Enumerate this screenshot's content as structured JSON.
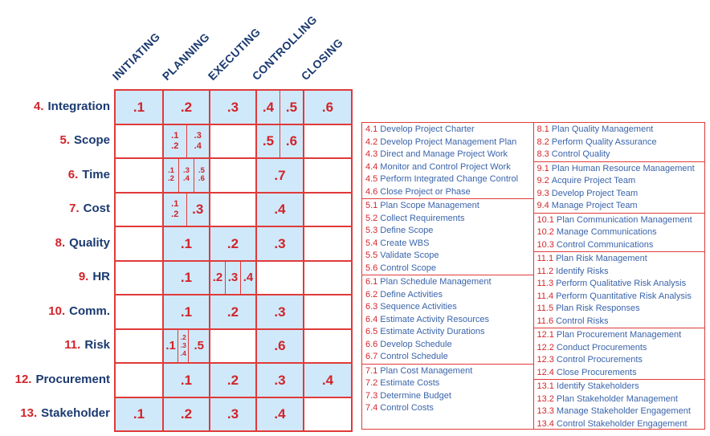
{
  "colors": {
    "cell_fill": "#cfe9fa",
    "line_red": "#e03a3a",
    "number_red": "#d2232a",
    "heading_navy": "#1b3a70",
    "legend_blue": "#3a64ab",
    "legend_number_red": "#d4262c"
  },
  "matrix": {
    "column_headers": [
      "INITIATING",
      "PLANNING",
      "EXECUTING",
      "CONTROLLING",
      "CLOSING"
    ],
    "rows": [
      {
        "num": "4.",
        "label": "Integration",
        "cells": [
          {
            "shaded": true,
            "subs": [
              {
                "size": "lg",
                "lines": [
                  ".1"
                ]
              }
            ]
          },
          {
            "shaded": true,
            "subs": [
              {
                "size": "lg",
                "lines": [
                  ".2"
                ]
              }
            ]
          },
          {
            "shaded": true,
            "subs": [
              {
                "size": "lg",
                "lines": [
                  ".3"
                ]
              }
            ]
          },
          {
            "shaded": true,
            "subs": [
              {
                "size": "lg",
                "lines": [
                  ".4"
                ]
              },
              {
                "size": "lg",
                "lines": [
                  ".5"
                ]
              }
            ]
          },
          {
            "shaded": true,
            "subs": [
              {
                "size": "lg",
                "lines": [
                  ".6"
                ]
              }
            ]
          }
        ]
      },
      {
        "num": "5.",
        "label": "Scope",
        "cells": [
          {
            "shaded": false,
            "subs": []
          },
          {
            "shaded": true,
            "subs": [
              {
                "size": "sm",
                "lines": [
                  ".1",
                  ".2"
                ]
              },
              {
                "size": "sm",
                "lines": [
                  ".3",
                  ".4"
                ]
              }
            ]
          },
          {
            "shaded": false,
            "subs": []
          },
          {
            "shaded": true,
            "subs": [
              {
                "size": "lg",
                "lines": [
                  ".5"
                ]
              },
              {
                "size": "lg",
                "lines": [
                  ".6"
                ]
              }
            ]
          },
          {
            "shaded": false,
            "subs": []
          }
        ]
      },
      {
        "num": "6.",
        "label": "Time",
        "cells": [
          {
            "shaded": false,
            "subs": []
          },
          {
            "shaded": true,
            "subs": [
              {
                "size": "xs",
                "lines": [
                  ".1",
                  ".2"
                ]
              },
              {
                "size": "xs",
                "lines": [
                  ".3",
                  ".4"
                ]
              },
              {
                "size": "xs",
                "lines": [
                  ".5",
                  ".6"
                ]
              }
            ]
          },
          {
            "shaded": false,
            "subs": []
          },
          {
            "shaded": true,
            "subs": [
              {
                "size": "lg",
                "lines": [
                  ".7"
                ]
              }
            ]
          },
          {
            "shaded": false,
            "subs": []
          }
        ]
      },
      {
        "num": "7.",
        "label": "Cost",
        "cells": [
          {
            "shaded": false,
            "subs": []
          },
          {
            "shaded": true,
            "subs": [
              {
                "size": "sm",
                "lines": [
                  ".1",
                  ".2"
                ]
              },
              {
                "size": "lg",
                "lines": [
                  ".3"
                ]
              }
            ]
          },
          {
            "shaded": false,
            "subs": []
          },
          {
            "shaded": true,
            "subs": [
              {
                "size": "lg",
                "lines": [
                  ".4"
                ]
              }
            ]
          },
          {
            "shaded": false,
            "subs": []
          }
        ]
      },
      {
        "num": "8.",
        "label": "Quality",
        "cells": [
          {
            "shaded": false,
            "subs": []
          },
          {
            "shaded": true,
            "subs": [
              {
                "size": "lg",
                "lines": [
                  ".1"
                ]
              }
            ]
          },
          {
            "shaded": true,
            "subs": [
              {
                "size": "lg",
                "lines": [
                  ".2"
                ]
              }
            ]
          },
          {
            "shaded": true,
            "subs": [
              {
                "size": "lg",
                "lines": [
                  ".3"
                ]
              }
            ]
          },
          {
            "shaded": false,
            "subs": []
          }
        ]
      },
      {
        "num": "9.",
        "label": "HR",
        "cells": [
          {
            "shaded": false,
            "subs": []
          },
          {
            "shaded": true,
            "subs": [
              {
                "size": "lg",
                "lines": [
                  ".1"
                ]
              }
            ]
          },
          {
            "shaded": true,
            "subs": [
              {
                "size": "md",
                "lines": [
                  ".2"
                ]
              },
              {
                "size": "md",
                "lines": [
                  ".3"
                ]
              },
              {
                "size": "md",
                "lines": [
                  ".4"
                ]
              }
            ]
          },
          {
            "shaded": false,
            "subs": []
          },
          {
            "shaded": false,
            "subs": []
          }
        ]
      },
      {
        "num": "10.",
        "label": "Comm.",
        "cells": [
          {
            "shaded": false,
            "subs": []
          },
          {
            "shaded": true,
            "subs": [
              {
                "size": "lg",
                "lines": [
                  ".1"
                ]
              }
            ]
          },
          {
            "shaded": true,
            "subs": [
              {
                "size": "lg",
                "lines": [
                  ".2"
                ]
              }
            ]
          },
          {
            "shaded": true,
            "subs": [
              {
                "size": "lg",
                "lines": [
                  ".3"
                ]
              }
            ]
          },
          {
            "shaded": false,
            "subs": []
          }
        ]
      },
      {
        "num": "11.",
        "label": "Risk",
        "cells": [
          {
            "shaded": false,
            "subs": []
          },
          {
            "shaded": true,
            "subs": [
              {
                "size": "md",
                "flex": "1.4",
                "lines": [
                  ".1"
                ]
              },
              {
                "size": "xxs",
                "flex": "1",
                "lines": [
                  ".2",
                  ".3",
                  ".4"
                ]
              },
              {
                "size": "md",
                "flex": "2",
                "lines": [
                  ".5"
                ]
              }
            ]
          },
          {
            "shaded": false,
            "subs": []
          },
          {
            "shaded": true,
            "subs": [
              {
                "size": "lg",
                "lines": [
                  ".6"
                ]
              }
            ]
          },
          {
            "shaded": false,
            "subs": []
          }
        ]
      },
      {
        "num": "12.",
        "label": "Procurement",
        "cells": [
          {
            "shaded": false,
            "subs": []
          },
          {
            "shaded": true,
            "subs": [
              {
                "size": "lg",
                "lines": [
                  ".1"
                ]
              }
            ]
          },
          {
            "shaded": true,
            "subs": [
              {
                "size": "lg",
                "lines": [
                  ".2"
                ]
              }
            ]
          },
          {
            "shaded": true,
            "subs": [
              {
                "size": "lg",
                "lines": [
                  ".3"
                ]
              }
            ]
          },
          {
            "shaded": true,
            "subs": [
              {
                "size": "lg",
                "lines": [
                  ".4"
                ]
              }
            ]
          }
        ]
      },
      {
        "num": "13.",
        "label": "Stakeholder",
        "cells": [
          {
            "shaded": true,
            "subs": [
              {
                "size": "lg",
                "lines": [
                  ".1"
                ]
              }
            ]
          },
          {
            "shaded": true,
            "subs": [
              {
                "size": "lg",
                "lines": [
                  ".2"
                ]
              }
            ]
          },
          {
            "shaded": true,
            "subs": [
              {
                "size": "lg",
                "lines": [
                  ".3"
                ]
              }
            ]
          },
          {
            "shaded": true,
            "subs": [
              {
                "size": "lg",
                "lines": [
                  ".4"
                ]
              }
            ]
          },
          {
            "shaded": false,
            "subs": []
          }
        ]
      }
    ]
  },
  "legend": {
    "left_groups": [
      {
        "items": [
          {
            "num": "4.1",
            "name": "Develop Project Charter"
          },
          {
            "num": "4.2",
            "name": "Develop Project Management Plan"
          },
          {
            "num": "4.3",
            "name": "Direct and Manage Project Work"
          },
          {
            "num": "4.4",
            "name": "Monitor and Control Project Work"
          },
          {
            "num": "4.5",
            "name": "Perform Integrated Change Control"
          },
          {
            "num": "4.6",
            "name": "Close Project or Phase"
          }
        ]
      },
      {
        "items": [
          {
            "num": "5.1",
            "name": "Plan Scope Management"
          },
          {
            "num": "5.2",
            "name": "Collect Requirements"
          },
          {
            "num": "5.3",
            "name": "Define Scope"
          },
          {
            "num": "5.4",
            "name": "Create WBS"
          },
          {
            "num": "5.5",
            "name": "Validate Scope"
          },
          {
            "num": "5.6",
            "name": "Control Scope"
          }
        ]
      },
      {
        "items": [
          {
            "num": "6.1",
            "name": "Plan Schedule Management"
          },
          {
            "num": "6.2",
            "name": "Define Activities"
          },
          {
            "num": "6.3",
            "name": "Sequence Activities"
          },
          {
            "num": "6.4",
            "name": "Estimate Activity Resources"
          },
          {
            "num": "6.5",
            "name": "Estimate Activity Durations"
          },
          {
            "num": "6.6",
            "name": "Develop Schedule"
          },
          {
            "num": "6.7",
            "name": "Control Schedule"
          }
        ]
      },
      {
        "items": [
          {
            "num": "7.1",
            "name": "Plan Cost Management"
          },
          {
            "num": "7.2",
            "name": "Estimate Costs"
          },
          {
            "num": "7.3",
            "name": "Determine Budget"
          },
          {
            "num": "7.4",
            "name": "Control Costs"
          }
        ]
      }
    ],
    "right_groups": [
      {
        "items": [
          {
            "num": "8.1",
            "name": "Plan Quality Management"
          },
          {
            "num": "8.2",
            "name": "Perform Quality Assurance"
          },
          {
            "num": "8.3",
            "name": "Control Quality"
          }
        ]
      },
      {
        "items": [
          {
            "num": "9.1",
            "name": "Plan Human Resource Management"
          },
          {
            "num": "9.2",
            "name": "Acquire Project Team"
          },
          {
            "num": "9.3",
            "name": "Develop Project Team"
          },
          {
            "num": "9.4",
            "name": "Manage Project Team"
          }
        ]
      },
      {
        "items": [
          {
            "num": "10.1",
            "name": "Plan Communication Management"
          },
          {
            "num": "10.2",
            "name": "Manage Communications"
          },
          {
            "num": "10.3",
            "name": "Control Communications"
          }
        ]
      },
      {
        "items": [
          {
            "num": "11.1",
            "name": "Plan Risk Management"
          },
          {
            "num": "11.2",
            "name": "Identify Risks"
          },
          {
            "num": "11.3",
            "name": "Perform Qualitative Risk Analysis"
          },
          {
            "num": "11.4",
            "name": "Perform Quantitative Risk Analysis"
          },
          {
            "num": "11.5",
            "name": "Plan Risk Responses"
          },
          {
            "num": "11.6",
            "name": "Control Risks"
          }
        ]
      },
      {
        "items": [
          {
            "num": "12.1",
            "name": "Plan Procurement Management"
          },
          {
            "num": "12.2",
            "name": "Conduct Procurements"
          },
          {
            "num": "12.3",
            "name": "Control Procurements"
          },
          {
            "num": "12.4",
            "name": "Close Procurements"
          }
        ]
      },
      {
        "items": [
          {
            "num": "13.1",
            "name": "Identify Stakeholders"
          },
          {
            "num": "13.2",
            "name": "Plan Stakeholder Management"
          },
          {
            "num": "13.3",
            "name": "Manage Stakeholder Engagement"
          },
          {
            "num": "13.4",
            "name": "Control Stakeholder Engagement"
          }
        ]
      }
    ]
  }
}
